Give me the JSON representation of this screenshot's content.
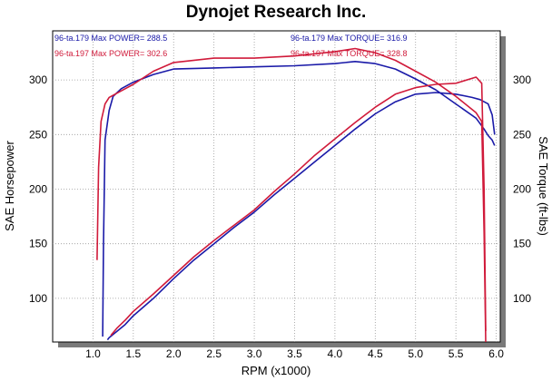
{
  "chart_data": {
    "type": "line",
    "title": "Dynojet Research Inc.",
    "xlabel": "RPM (x1000)",
    "ylabel_left": "SAE Horsepower",
    "ylabel_right": "SAE Torque (ft-lbs)",
    "xlim": [
      0.5,
      6.05
    ],
    "ylim": [
      60,
      345
    ],
    "x_ticks": [
      1.0,
      1.5,
      2.0,
      2.5,
      3.0,
      3.5,
      4.0,
      4.5,
      5.0,
      5.5,
      6.0
    ],
    "x_tick_labels": [
      "1.0",
      "1.5",
      "2.0",
      "2.5",
      "3.0",
      "3.5",
      "4.0",
      "4.5",
      "5.0",
      "5.5",
      "6.0"
    ],
    "y_ticks": [
      100,
      150,
      200,
      250,
      300
    ],
    "y_tick_labels": [
      "100",
      "150",
      "200",
      "250",
      "300"
    ],
    "grid": true,
    "annotations": [
      {
        "run": "96-ta.179",
        "text": "Max POWER= 288.5",
        "color": "#1a1aa8"
      },
      {
        "run": "96-ta.197",
        "text": "Max POWER= 302.6",
        "color": "#d01a3a"
      },
      {
        "run": "96-ta.179",
        "text": "Max TORQUE= 316.9",
        "color": "#1a1aa8"
      },
      {
        "run": "96-ta.197",
        "text": "Max TORQUE= 328.8",
        "color": "#d01a3a"
      }
    ],
    "series": [
      {
        "run": "96-ta.179",
        "measure": "power",
        "color": "#1a1aa8",
        "x": [
          1.18,
          1.2,
          1.3,
          1.4,
          1.5,
          1.75,
          2.0,
          2.25,
          2.5,
          2.75,
          3.0,
          3.25,
          3.5,
          3.75,
          4.0,
          4.25,
          4.5,
          4.75,
          5.0,
          5.25,
          5.5,
          5.7,
          5.8,
          5.9,
          5.95,
          5.98
        ],
        "y": [
          62,
          64,
          70,
          76,
          84,
          100,
          118,
          135,
          150,
          165,
          179,
          195,
          210,
          225,
          240,
          255,
          269,
          280,
          287,
          288.5,
          287,
          284,
          282,
          278,
          268,
          250
        ]
      },
      {
        "run": "96-ta.179",
        "measure": "torque",
        "color": "#1a1aa8",
        "x": [
          1.12,
          1.13,
          1.15,
          1.2,
          1.25,
          1.35,
          1.5,
          1.75,
          2.0,
          2.5,
          3.0,
          3.5,
          4.0,
          4.25,
          4.5,
          4.75,
          5.0,
          5.25,
          5.5,
          5.75,
          5.85,
          5.9,
          5.95,
          5.98
        ],
        "y": [
          65,
          150,
          245,
          272,
          285,
          292,
          298,
          305,
          310,
          311,
          312,
          313,
          315,
          316.9,
          315,
          310,
          301,
          291,
          278,
          265,
          255,
          249,
          245,
          240
        ]
      },
      {
        "run": "96-ta.197",
        "measure": "power",
        "color": "#d01a3a",
        "x": [
          1.22,
          1.3,
          1.4,
          1.5,
          1.75,
          2.0,
          2.25,
          2.5,
          2.75,
          3.0,
          3.25,
          3.5,
          3.75,
          4.0,
          4.25,
          4.5,
          4.75,
          5.0,
          5.25,
          5.5,
          5.75,
          5.82,
          5.85,
          5.87
        ],
        "y": [
          66,
          73,
          80,
          88,
          104,
          121,
          138,
          153,
          167,
          181,
          198,
          214,
          231,
          246,
          261,
          275,
          287,
          293,
          296,
          297,
          302.6,
          297,
          200,
          70
        ]
      },
      {
        "run": "96-ta.197",
        "measure": "torque",
        "color": "#d01a3a",
        "x": [
          1.05,
          1.07,
          1.1,
          1.15,
          1.2,
          1.3,
          1.4,
          1.5,
          1.75,
          2.0,
          2.5,
          3.0,
          3.5,
          4.0,
          4.25,
          4.5,
          4.75,
          5.0,
          5.25,
          5.5,
          5.75,
          5.82,
          5.85,
          5.87
        ],
        "y": [
          135,
          220,
          262,
          278,
          284,
          288,
          292,
          296,
          308,
          316,
          320,
          320,
          322,
          326,
          328.8,
          325,
          318,
          308,
          298,
          285,
          270,
          262,
          160,
          60
        ]
      }
    ]
  }
}
